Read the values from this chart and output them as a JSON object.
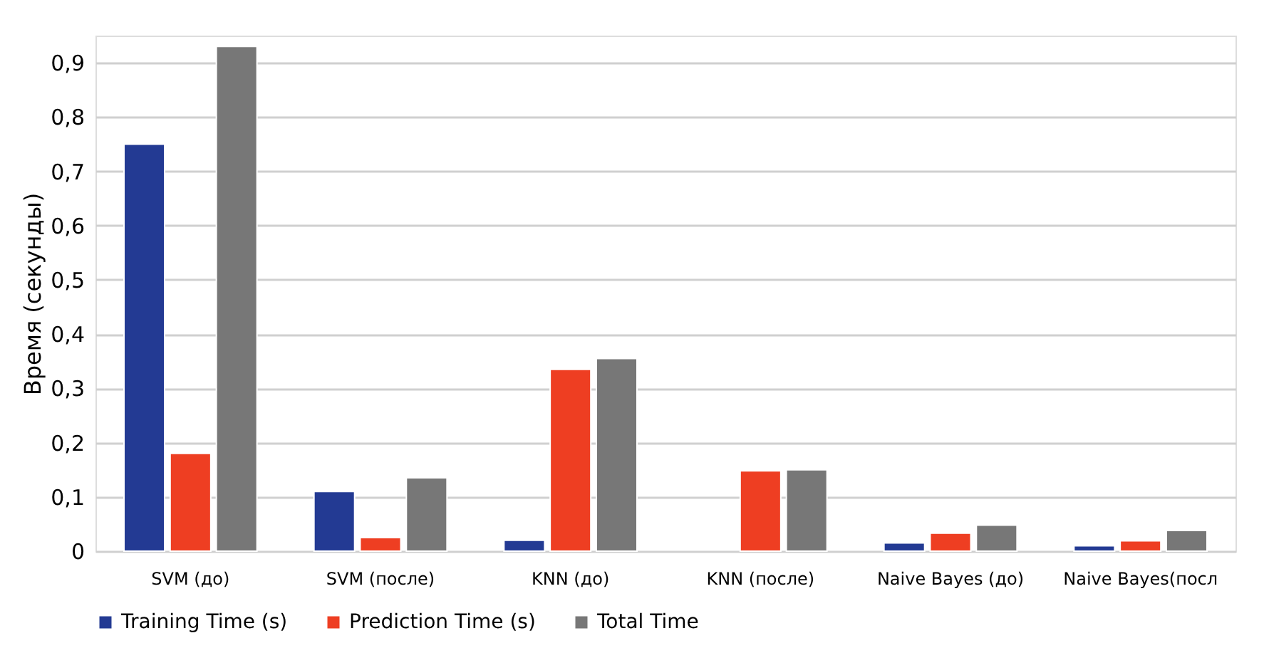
{
  "chart_data": {
    "type": "bar",
    "ylabel": "Время (секунды)",
    "categories": [
      "SVM (до)",
      "SVM (после)",
      "KNN (до)",
      "KNN (после)",
      "Naive Bayes (до)",
      "Naive Bayes(посл"
    ],
    "series": [
      {
        "name": "Training Time (s)",
        "color": "#233a93",
        "values": [
          0.75,
          0.11,
          0.02,
          null,
          0.015,
          0.01
        ]
      },
      {
        "name": "Prediction Time (s)",
        "color": "#ee3e22",
        "values": [
          0.18,
          0.025,
          0.335,
          0.148,
          0.033,
          0.019
        ]
      },
      {
        "name": "Total Time",
        "color": "#777777",
        "values": [
          0.93,
          0.135,
          0.355,
          0.15,
          0.048,
          0.038
        ]
      }
    ],
    "ylim": [
      0,
      0.95
    ],
    "yticks": [
      {
        "value": 0,
        "label": "0"
      },
      {
        "value": 0.1,
        "label": "0,1"
      },
      {
        "value": 0.2,
        "label": "0,2"
      },
      {
        "value": 0.3,
        "label": "0,3"
      },
      {
        "value": 0.4,
        "label": "0,4"
      },
      {
        "value": 0.5,
        "label": "0,5"
      },
      {
        "value": 0.6,
        "label": "0,6"
      },
      {
        "value": 0.7,
        "label": "0,7"
      },
      {
        "value": 0.8,
        "label": "0,8"
      },
      {
        "value": 0.9,
        "label": "0,9"
      }
    ],
    "grid": "y",
    "legend": "bottom"
  }
}
